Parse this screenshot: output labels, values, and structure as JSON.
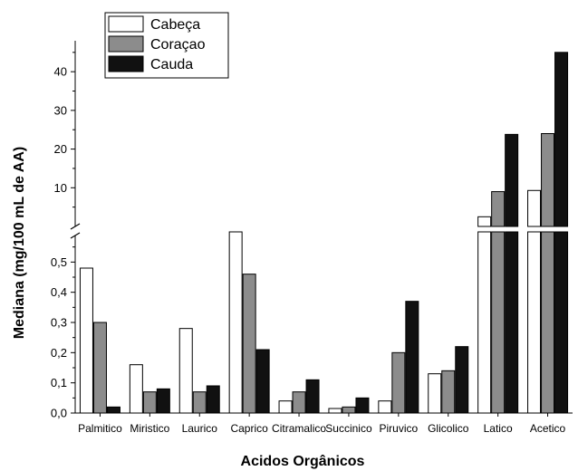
{
  "chart_data": {
    "type": "bar",
    "title": "",
    "xlabel": "Acidos Orgânicos",
    "ylabel": "Mediana (mg/100 mL de AA)",
    "categories": [
      "Palmitico",
      "Miristico",
      "Laurico",
      "Caprico",
      "Citramalico",
      "Succinico",
      "Piruvico",
      "Glicolico",
      "Latico",
      "Acetico"
    ],
    "series": [
      {
        "name": "Cabeça",
        "color": "#ffffff",
        "values": [
          0.48,
          0.16,
          0.28,
          0.6,
          0.04,
          0.015,
          0.04,
          0.13,
          2.5,
          9.3
        ]
      },
      {
        "name": "Coraçao",
        "color": "#8c8c8c",
        "values": [
          0.3,
          0.07,
          0.07,
          0.46,
          0.07,
          0.02,
          0.2,
          0.14,
          9.0,
          24.0
        ]
      },
      {
        "name": "Cauda",
        "color": "#111111",
        "values": [
          0.02,
          0.08,
          0.09,
          0.21,
          0.11,
          0.05,
          0.37,
          0.22,
          23.8,
          45.0
        ]
      }
    ],
    "axis_break": true,
    "lower_ylim": [
      0,
      0.6
    ],
    "upper_ylim": [
      0,
      48
    ],
    "lower_ticks": [
      "0,0",
      "0,1",
      "0,2",
      "0,3",
      "0,4",
      "0,5"
    ],
    "upper_ticks": [
      "10",
      "20",
      "30",
      "40"
    ],
    "lower_tick_values": [
      0,
      0.1,
      0.2,
      0.3,
      0.4,
      0.5
    ],
    "upper_tick_values": [
      10,
      20,
      30,
      40
    ],
    "grid": false,
    "legend_position": "top-left"
  }
}
